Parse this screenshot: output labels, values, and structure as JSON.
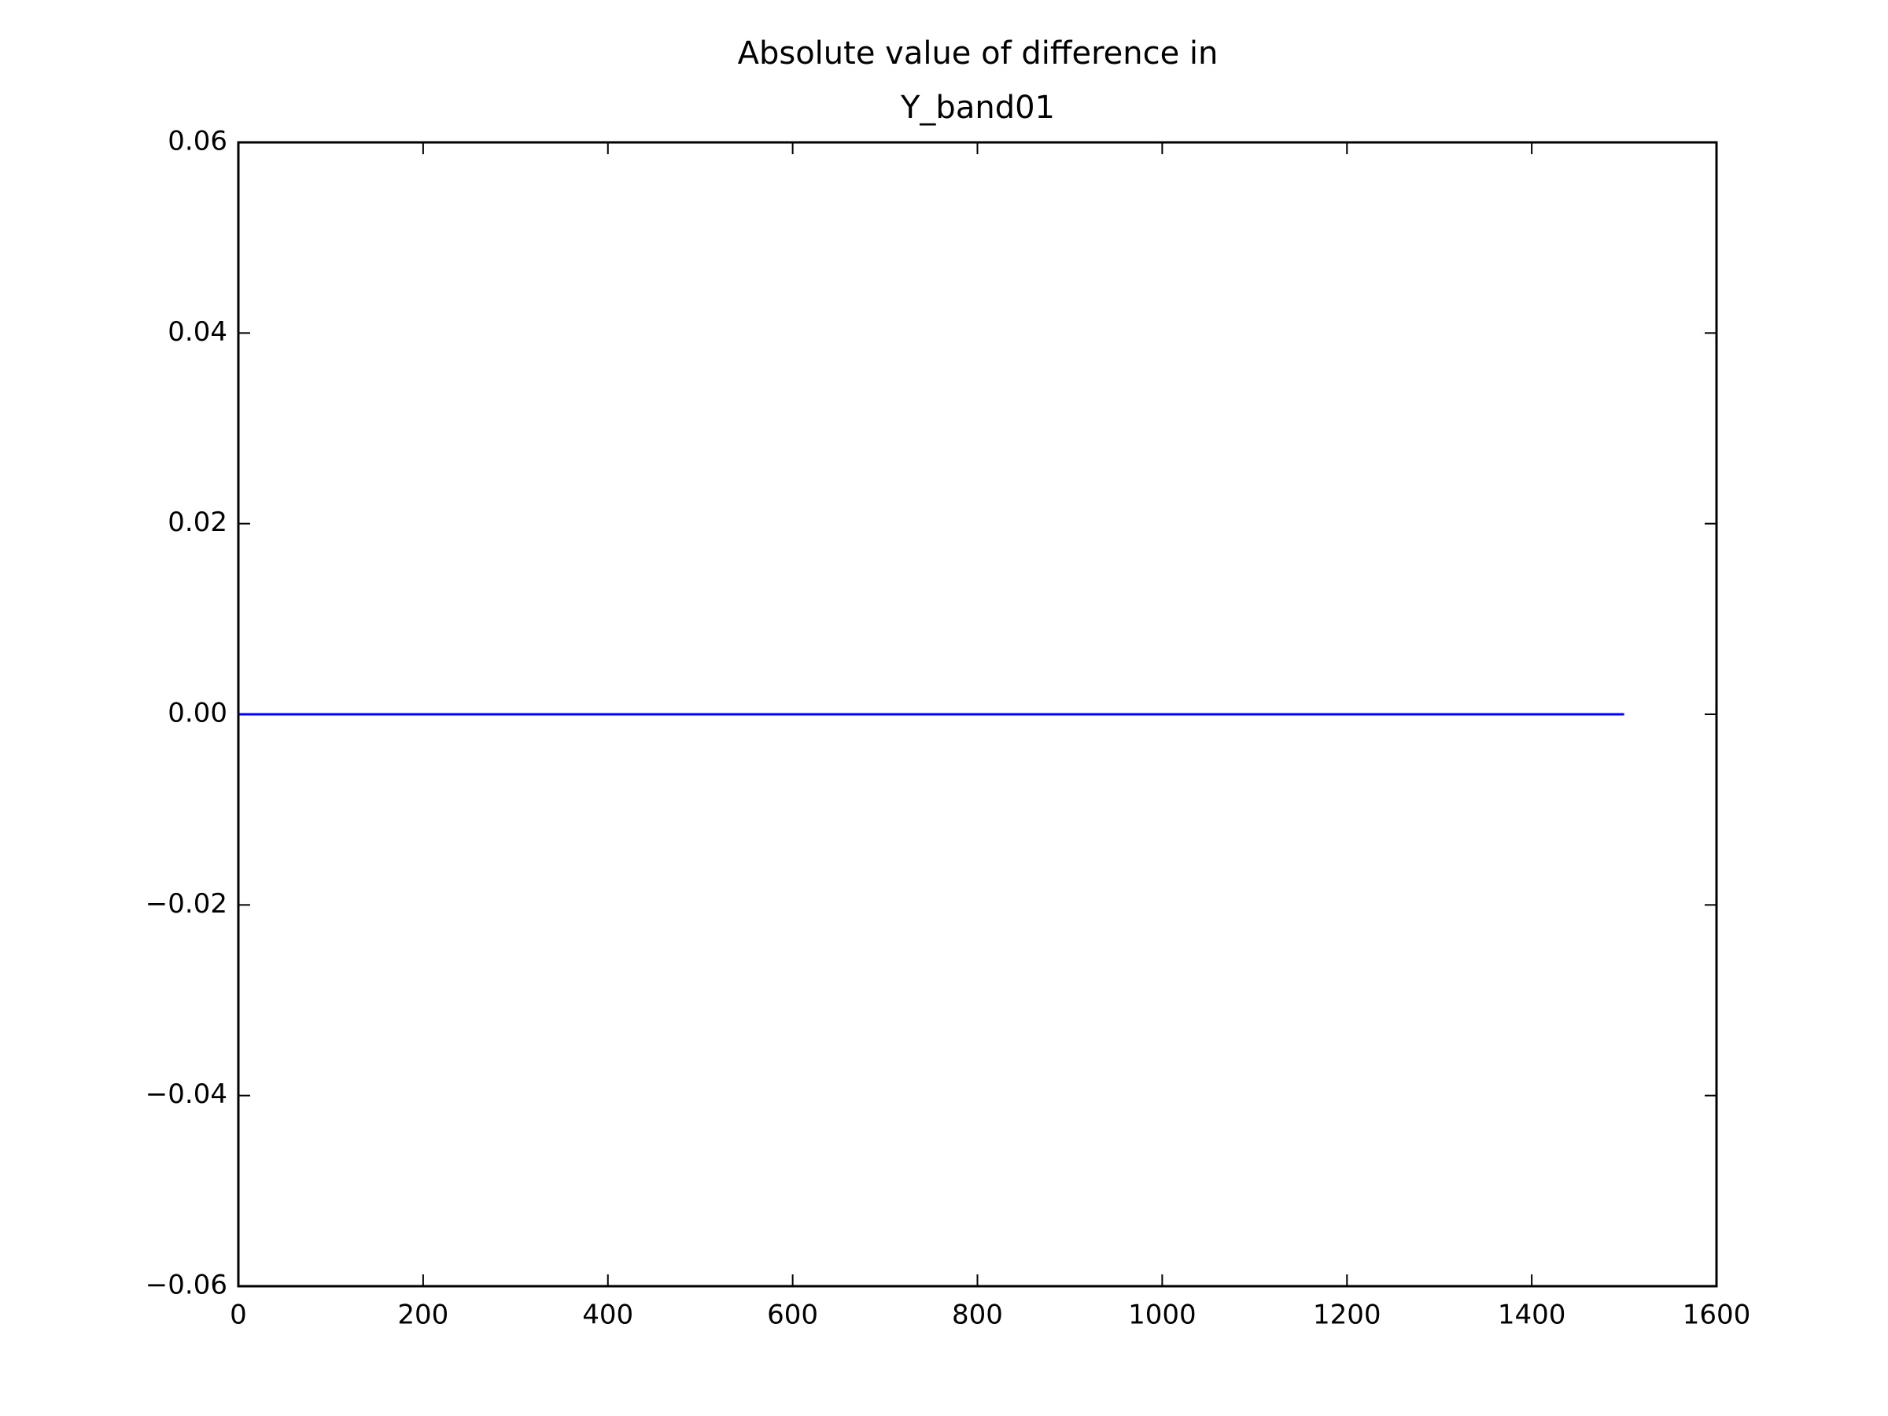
{
  "chart_data": {
    "type": "line",
    "title": [
      "Absolute value of difference in",
      "Y_band01"
    ],
    "x": [
      0,
      1500
    ],
    "series": [
      {
        "color": "#0000ff",
        "values": [
          0,
          0
        ]
      }
    ],
    "xlim": [
      0,
      1600
    ],
    "xticks": [
      0,
      200,
      400,
      600,
      800,
      1000,
      1200,
      1400,
      1600
    ],
    "ylim": [
      -0.06,
      0.06
    ],
    "yticks": [
      {
        "value": -0.06,
        "label": "−0.06"
      },
      {
        "value": -0.04,
        "label": "−0.04"
      },
      {
        "value": -0.02,
        "label": "−0.02"
      },
      {
        "value": 0,
        "label": "0.00"
      },
      0.02,
      0.04,
      0.06
    ],
    "grid": false
  }
}
